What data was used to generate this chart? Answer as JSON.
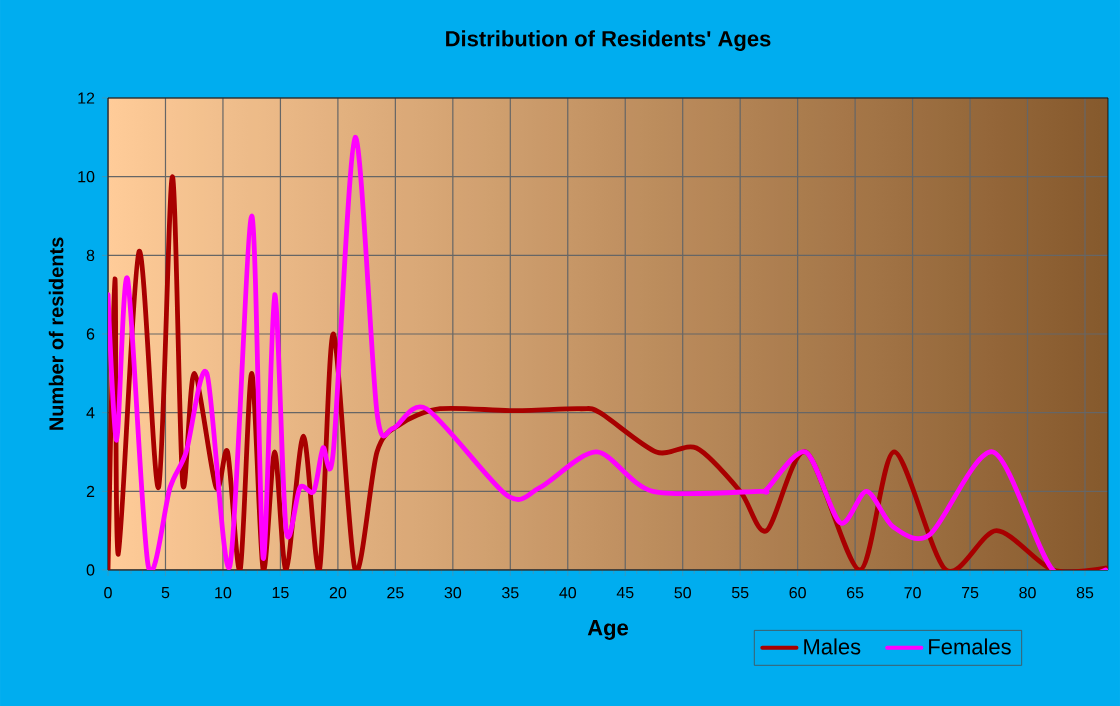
{
  "chart_data": {
    "type": "line",
    "title": "Distribution of Residents' Ages",
    "xlabel": "Age",
    "ylabel": "Number of residents",
    "xlim": [
      0,
      87
    ],
    "ylim": [
      0,
      12
    ],
    "xticks": [
      0,
      5,
      10,
      15,
      20,
      25,
      30,
      35,
      40,
      45,
      50,
      55,
      60,
      65,
      70,
      75,
      80,
      85
    ],
    "yticks": [
      0,
      2,
      4,
      6,
      8,
      10,
      12
    ],
    "grid": true,
    "legend": "bottom right",
    "marker": "none",
    "line_style": "solid",
    "series": [
      {
        "name": "Males",
        "color": "#a80000",
        "x": [
          0,
          0.6,
          0.9,
          2.7,
          4.4,
          5.6,
          6.5,
          7.5,
          9.4,
          10.4,
          11.5,
          12.5,
          13.5,
          14.5,
          15.5,
          17,
          18.4,
          19.6,
          21.5,
          23.4,
          25.4,
          28.9,
          35.2,
          41,
          42.8,
          47.7,
          51.2,
          55,
          57.3,
          60.7,
          65.4,
          68.4,
          72.9,
          77.3,
          82.2,
          86.8
        ],
        "values": [
          0,
          7.4,
          0.4,
          8.1,
          2.1,
          10,
          2.2,
          5,
          2.1,
          3,
          0,
          5,
          0,
          3,
          0,
          3.4,
          0,
          6,
          0,
          3,
          3.7,
          4.1,
          4.05,
          4.1,
          4,
          3,
          3.1,
          2,
          1,
          3,
          0,
          3,
          0,
          1,
          0,
          0.05
        ]
      },
      {
        "name": "Females",
        "color": "#ff00ff",
        "x": [
          0,
          0.75,
          1.7,
          3.5,
          5.4,
          6.8,
          8.6,
          10.6,
          12.5,
          13.5,
          14.5,
          15.5,
          16.7,
          17.9,
          18.7,
          19.6,
          21.5,
          23.4,
          24.8,
          27.7,
          34.7,
          37.6,
          42.5,
          47.4,
          56.7,
          57.3,
          60.7,
          63.7,
          66,
          68.3,
          71.5,
          77,
          82.2,
          86.8
        ],
        "values": [
          7,
          3.3,
          7.4,
          0.1,
          2.1,
          3,
          5,
          0.1,
          9,
          0.3,
          7,
          1,
          2.1,
          2,
          3.1,
          3,
          11,
          4,
          3.6,
          4.1,
          1.9,
          2.1,
          3,
          2,
          2,
          2.05,
          3,
          1.2,
          2,
          1.1,
          0.9,
          3,
          0,
          0
        ]
      }
    ]
  }
}
